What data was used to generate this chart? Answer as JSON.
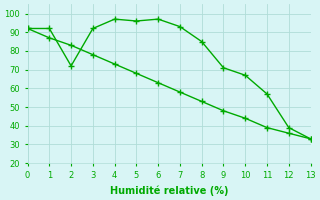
{
  "line1_x": [
    0,
    1,
    2,
    3,
    4,
    5,
    6,
    7,
    8,
    9,
    10,
    11,
    12,
    13
  ],
  "line1_y": [
    92,
    92,
    72,
    92,
    97,
    96,
    97,
    93,
    85,
    71,
    67,
    57,
    39,
    33
  ],
  "line2_x": [
    0,
    1,
    2,
    3,
    4,
    5,
    6,
    7,
    8,
    9,
    10,
    11,
    12,
    13
  ],
  "line2_y": [
    92,
    87,
    83,
    78,
    73,
    68,
    63,
    58,
    53,
    48,
    44,
    39,
    36,
    33
  ],
  "line_color": "#00aa00",
  "bg_color": "#d8f5f5",
  "grid_color": "#b0ddd8",
  "xlabel": "Humidité relative (%)",
  "xlabel_color": "#00aa00",
  "tick_color": "#00aa00",
  "ylim": [
    20,
    105
  ],
  "xlim": [
    0,
    13
  ],
  "yticks": [
    20,
    30,
    40,
    50,
    60,
    70,
    80,
    90,
    100
  ],
  "xticks": [
    0,
    1,
    2,
    3,
    4,
    5,
    6,
    7,
    8,
    9,
    10,
    11,
    12,
    13
  ],
  "marker_style": "+",
  "marker_size": 4,
  "line_width": 1.0,
  "xlabel_fontsize": 7,
  "tick_fontsize": 6
}
